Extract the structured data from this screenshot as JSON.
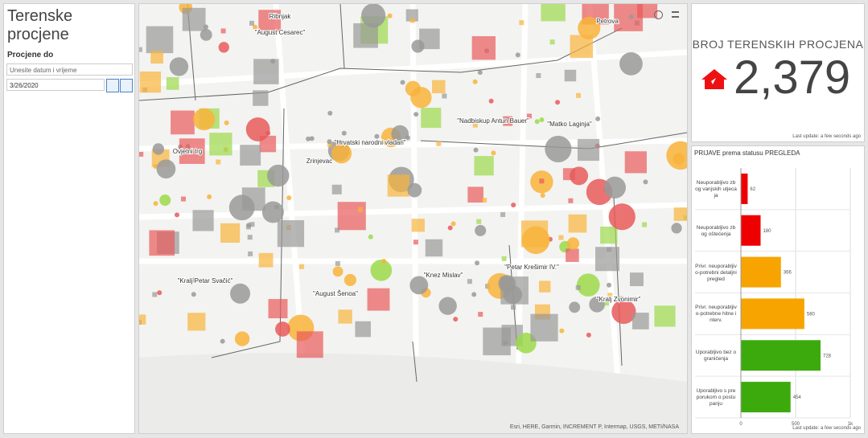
{
  "sidebar": {
    "title": "Terenske procjene",
    "date_label": "Procjene do",
    "date_placeholder": "Unesite datum i vrijeme",
    "date_value": "3/26/2020"
  },
  "map": {
    "labels": [
      "Ribnjak",
      "\"August Cesarec\"",
      "Petrova",
      "\"Nadbiskup Antun Bauer\"",
      "\"Matko Laginja\"",
      "\"Hrvatski narodni vladari\"",
      "Zrinjevac",
      "Ovjetni trg",
      "\"Petar Krešimir IV.\"",
      "\"Knez Mislav\"",
      "\"Kralj Petar Svačić\"",
      "\"August Šenoa\"",
      "\"Kralj Zvonimir\""
    ],
    "attribution": "Esri, HERE, Garmin, INCREMENT P, Intermap, USGS, METI/NASA"
  },
  "indicator": {
    "title": "BROJ TERENSKIH PROCJENA",
    "value": 2379,
    "value_label": "2,379",
    "footer": "Last update: a few seconds ago"
  },
  "bar_chart": {
    "type": "bar",
    "title": "PRIJAVE prema statusu PREGLEDA",
    "categories": [
      "Neuporabljivo zbog vanjskih utjecaja",
      "Neuporabljivo zbog oštećenja",
      "Privr. neuporabljivo-potrebni detaljni pregled",
      "Privr. neuporabljivo-potrebne hitne interv.",
      "Uporabljivo bez ograničenja",
      "Uporabljivo s preporukom o postupanju"
    ],
    "values": [
      62,
      180,
      366,
      580,
      728,
      454
    ],
    "colors": [
      "#ee0000",
      "#ee0000",
      "#f7a400",
      "#f7a400",
      "#3caa0c",
      "#3caa0c"
    ],
    "xlim": [
      0,
      1000
    ],
    "xticks": [
      0,
      500,
      {
        "value": 1000,
        "label": "1k"
      }
    ],
    "footer": "Last update: a few seconds ago"
  }
}
